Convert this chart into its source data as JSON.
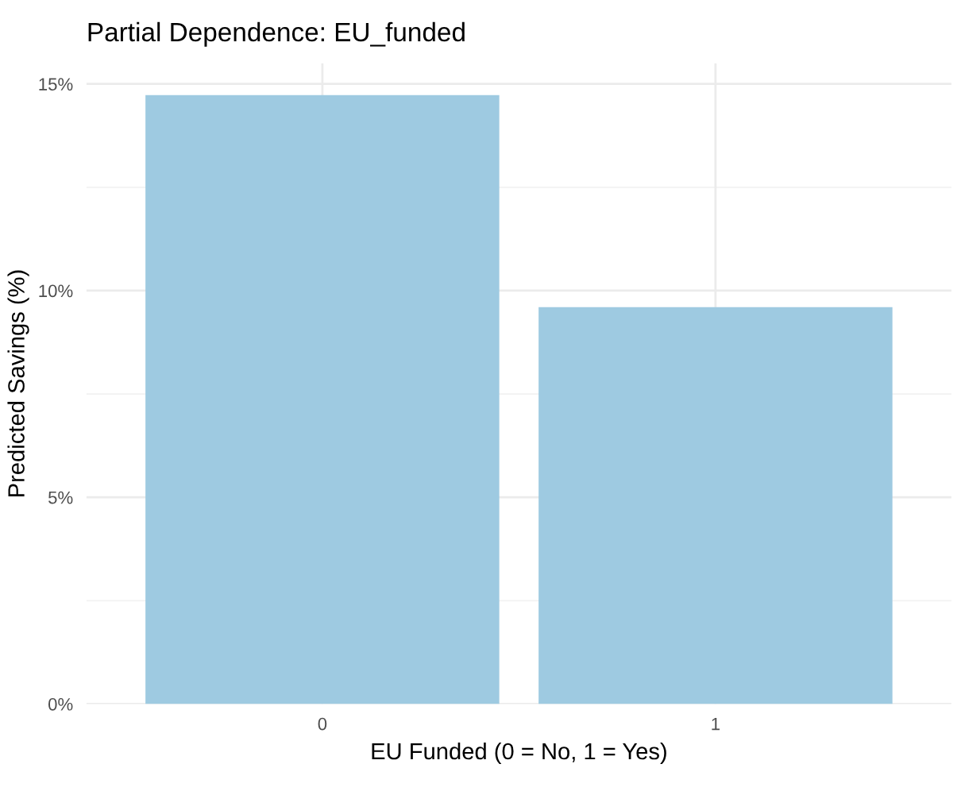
{
  "chart_data": {
    "type": "bar",
    "title": "Partial Dependence: EU_funded",
    "xlabel": "EU Funded (0 = No, 1 = Yes)",
    "ylabel": "Predicted Savings (%)",
    "categories": [
      "0",
      "1"
    ],
    "values": [
      14.73,
      9.6
    ],
    "color": "#9ecae1",
    "ylim": [
      0,
      15.5
    ],
    "yticks": [
      {
        "value": 0,
        "label": "0%"
      },
      {
        "value": 5,
        "label": "5%"
      },
      {
        "value": 10,
        "label": "10%"
      },
      {
        "value": 15,
        "label": "15%"
      }
    ],
    "grid": true
  }
}
